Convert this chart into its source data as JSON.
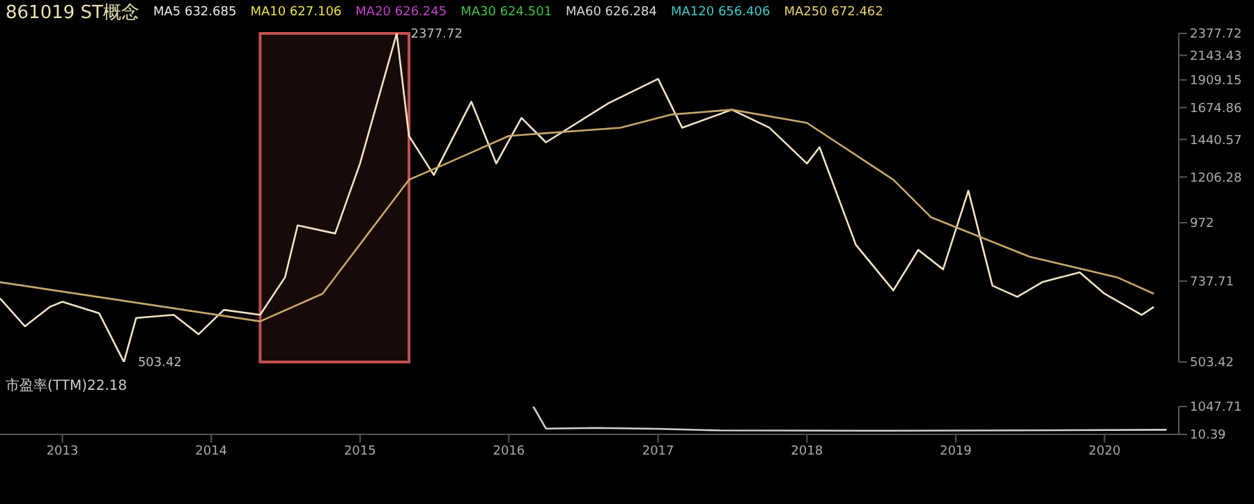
{
  "chart_data": [
    {
      "type": "line",
      "title": "861019 ST概念",
      "annotations": [
        "MA5 632.685",
        "MA10 627.106",
        "MA20 626.245",
        "MA30 624.501",
        "MA60 626.284",
        "MA120 656.406",
        "MA250 672.462",
        {
          "text": "2377.72",
          "x": "2015-04",
          "y": 2377.72
        },
        {
          "text": "503.42",
          "x": "2013-06",
          "y": 503.42
        }
      ],
      "series": [
        {
          "color": "#f2e2c4",
          "x": [
            "2012-08",
            "2012-10",
            "2012-12",
            "2013-01",
            "2013-04",
            "2013-06",
            "2013-07",
            "2013-10",
            "2013-12",
            "2014-02",
            "2014-05",
            "2014-07",
            "2014-08",
            "2014-11",
            "2015-01",
            "2015-04",
            "2015-05",
            "2015-07",
            "2015-10",
            "2015-12",
            "2016-02",
            "2016-04",
            "2016-09",
            "2017-01",
            "2017-03",
            "2017-07",
            "2017-10",
            "2018-01",
            "2018-02",
            "2018-05",
            "2018-08",
            "2018-10",
            "2018-12",
            "2019-02",
            "2019-04",
            "2019-06",
            "2019-08",
            "2019-11",
            "2020-01",
            "2020-04",
            "2020-05"
          ],
          "values": [
            680,
            596,
            653,
            669,
            634,
            503.42,
            620,
            629,
            574,
            644,
            629,
            751,
            960,
            924,
            1286,
            2377.72,
            1465,
            1218,
            1722,
            1286,
            1595,
            1421,
            1709,
            1918,
            1523,
            1658,
            1523,
            1286,
            1389,
            876,
            706,
            855,
            780,
            1131,
            722,
            685,
            734,
            769,
            695,
            629,
            653
          ]
        },
        {
          "color": "#c8a86a",
          "x": [
            "2012-08",
            "2014-05",
            "2014-10",
            "2015-05",
            "2015-08",
            "2016-01",
            "2016-10",
            "2017-02",
            "2017-07",
            "2018-01",
            "2018-08",
            "2018-11",
            "2019-07",
            "2020-02",
            "2020-05"
          ],
          "values": [
            734,
            610,
            695,
            1191,
            1286,
            1465,
            1523,
            1620,
            1658,
            1558,
            1191,
            998,
            828,
            751,
            695
          ]
        }
      ],
      "xlim": [
        "2012-08",
        "2020-07"
      ],
      "ylim": [
        503.42,
        2377.72
      ],
      "yticks": [
        503.42,
        737.71,
        972.0,
        1206.28,
        1440.57,
        1674.86,
        1909.15,
        2143.43,
        2377.72
      ],
      "log": "y",
      "grid": false,
      "tick_labels": "y",
      "bands": [
        {
          "axis": "x",
          "from": "2014-05",
          "to": "2015-05",
          "color": "#c0504d"
        }
      ]
    },
    {
      "type": "line",
      "title": "市盈率(TTM)22.18",
      "series": [
        {
          "color": "#d0d0d0",
          "x": [
            "2016-03",
            "2016-04",
            "2016-08",
            "2017-01",
            "2017-06",
            "2018-06",
            "2019-06",
            "2020-06"
          ],
          "values": [
            1047.71,
            27,
            30,
            26,
            20,
            19,
            20,
            22.18
          ]
        }
      ],
      "xlim": [
        "2012-08",
        "2020-07"
      ],
      "ylim": [
        10.39,
        1047.71
      ],
      "yticks": [
        10.39,
        1047.71
      ],
      "log": "y",
      "grid": false,
      "xticks": [
        {
          "value": "2013-01",
          "label": "2013"
        },
        {
          "value": "2014-01",
          "label": "2014"
        },
        {
          "value": "2015-01",
          "label": "2015"
        },
        {
          "value": "2016-01",
          "label": "2016"
        },
        {
          "value": "2017-01",
          "label": "2017"
        },
        {
          "value": "2018-01",
          "label": "2018"
        },
        {
          "value": "2019-01",
          "label": "2019"
        },
        {
          "value": "2020-01",
          "label": "2020"
        }
      ]
    }
  ]
}
